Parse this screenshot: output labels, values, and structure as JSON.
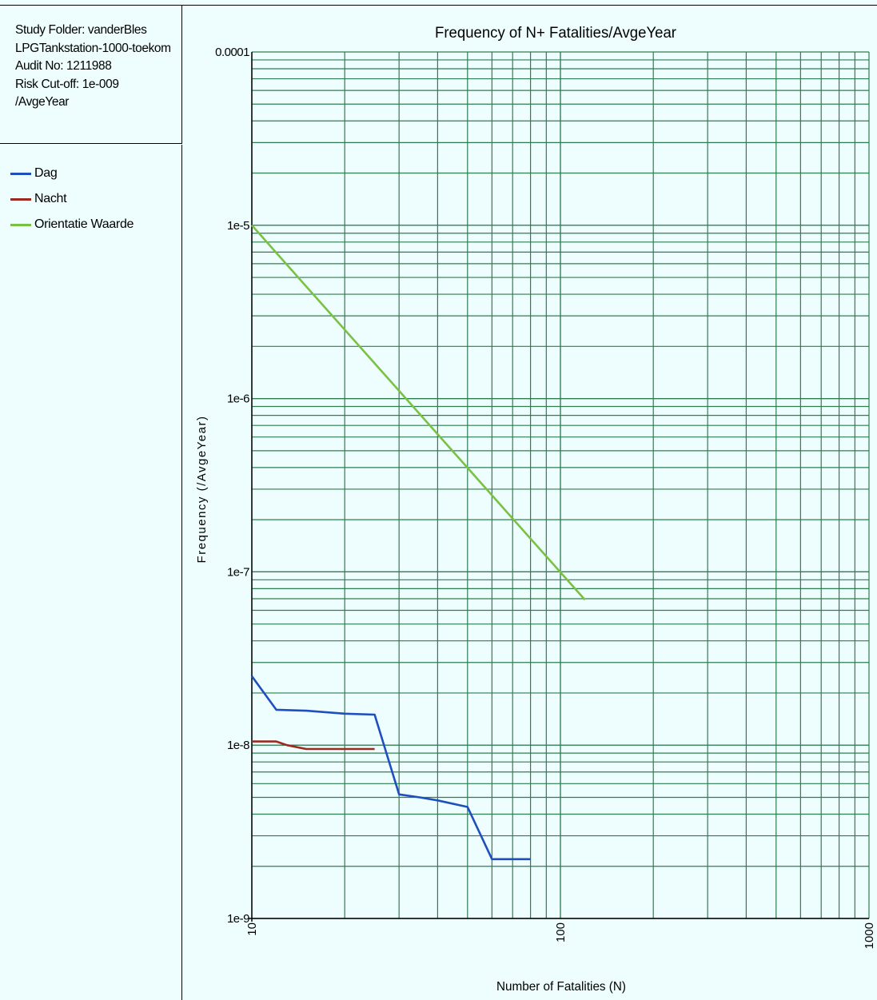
{
  "info": {
    "lines": [
      "Study Folder: vanderBles",
      "LPGTankstation-1000-toekom",
      "Audit No: 1211988",
      "Risk Cut-off: 1e-009",
      "/AvgeYear"
    ]
  },
  "legend": [
    {
      "name": "Dag",
      "color": "#1f4fbf"
    },
    {
      "name": "Nacht",
      "color": "#9c2a1f"
    },
    {
      "name": "Orientatie Waarde",
      "color": "#79c141"
    }
  ],
  "colors": {
    "background": "#eefefe",
    "grid": "#2e7d4e",
    "axis": "#000000"
  },
  "chart_data": {
    "type": "line",
    "title": "Frequency of N+ Fatalities/AvgeYear",
    "xlabel": "Number of Fatalities (N)",
    "ylabel": "Frequency  (/AvgeYear)",
    "xscale": "log",
    "yscale": "log",
    "xlim": [
      10,
      1000
    ],
    "ylim": [
      1e-09,
      0.0001
    ],
    "grid": true,
    "x_tick_labels": [
      {
        "value": 10,
        "label": "10"
      },
      {
        "value": 100,
        "label": "100"
      },
      {
        "value": 1000,
        "label": "1000"
      }
    ],
    "y_tick_labels": [
      {
        "value": 0.0001,
        "label": "0.0001"
      },
      {
        "value": 1e-05,
        "label": "1e-5"
      },
      {
        "value": 1e-06,
        "label": "1e-6"
      },
      {
        "value": 1e-07,
        "label": "1e-7"
      },
      {
        "value": 1e-08,
        "label": "1e-8"
      },
      {
        "value": 1e-09,
        "label": "1e-9"
      }
    ],
    "series": [
      {
        "name": "Dag",
        "color": "#1f4fbf",
        "points": [
          [
            10,
            2.5e-08
          ],
          [
            12,
            1.6e-08
          ],
          [
            15,
            1.58e-08
          ],
          [
            20,
            1.52e-08
          ],
          [
            25,
            1.5e-08
          ],
          [
            30,
            5.2e-09
          ],
          [
            35,
            5e-09
          ],
          [
            40,
            4.8e-09
          ],
          [
            50,
            4.4e-09
          ],
          [
            60,
            2.2e-09
          ],
          [
            80,
            2.2e-09
          ]
        ]
      },
      {
        "name": "Nacht",
        "color": "#9c2a1f",
        "points": [
          [
            10,
            1.05e-08
          ],
          [
            12,
            1.05e-08
          ],
          [
            13,
            1e-08
          ],
          [
            15,
            9.5e-09
          ],
          [
            20,
            9.5e-09
          ],
          [
            25,
            9.5e-09
          ]
        ]
      },
      {
        "name": "Orientatie Waarde",
        "color": "#79c141",
        "points": [
          [
            10,
            1e-05
          ],
          [
            120,
            6.9e-08
          ]
        ]
      }
    ]
  }
}
